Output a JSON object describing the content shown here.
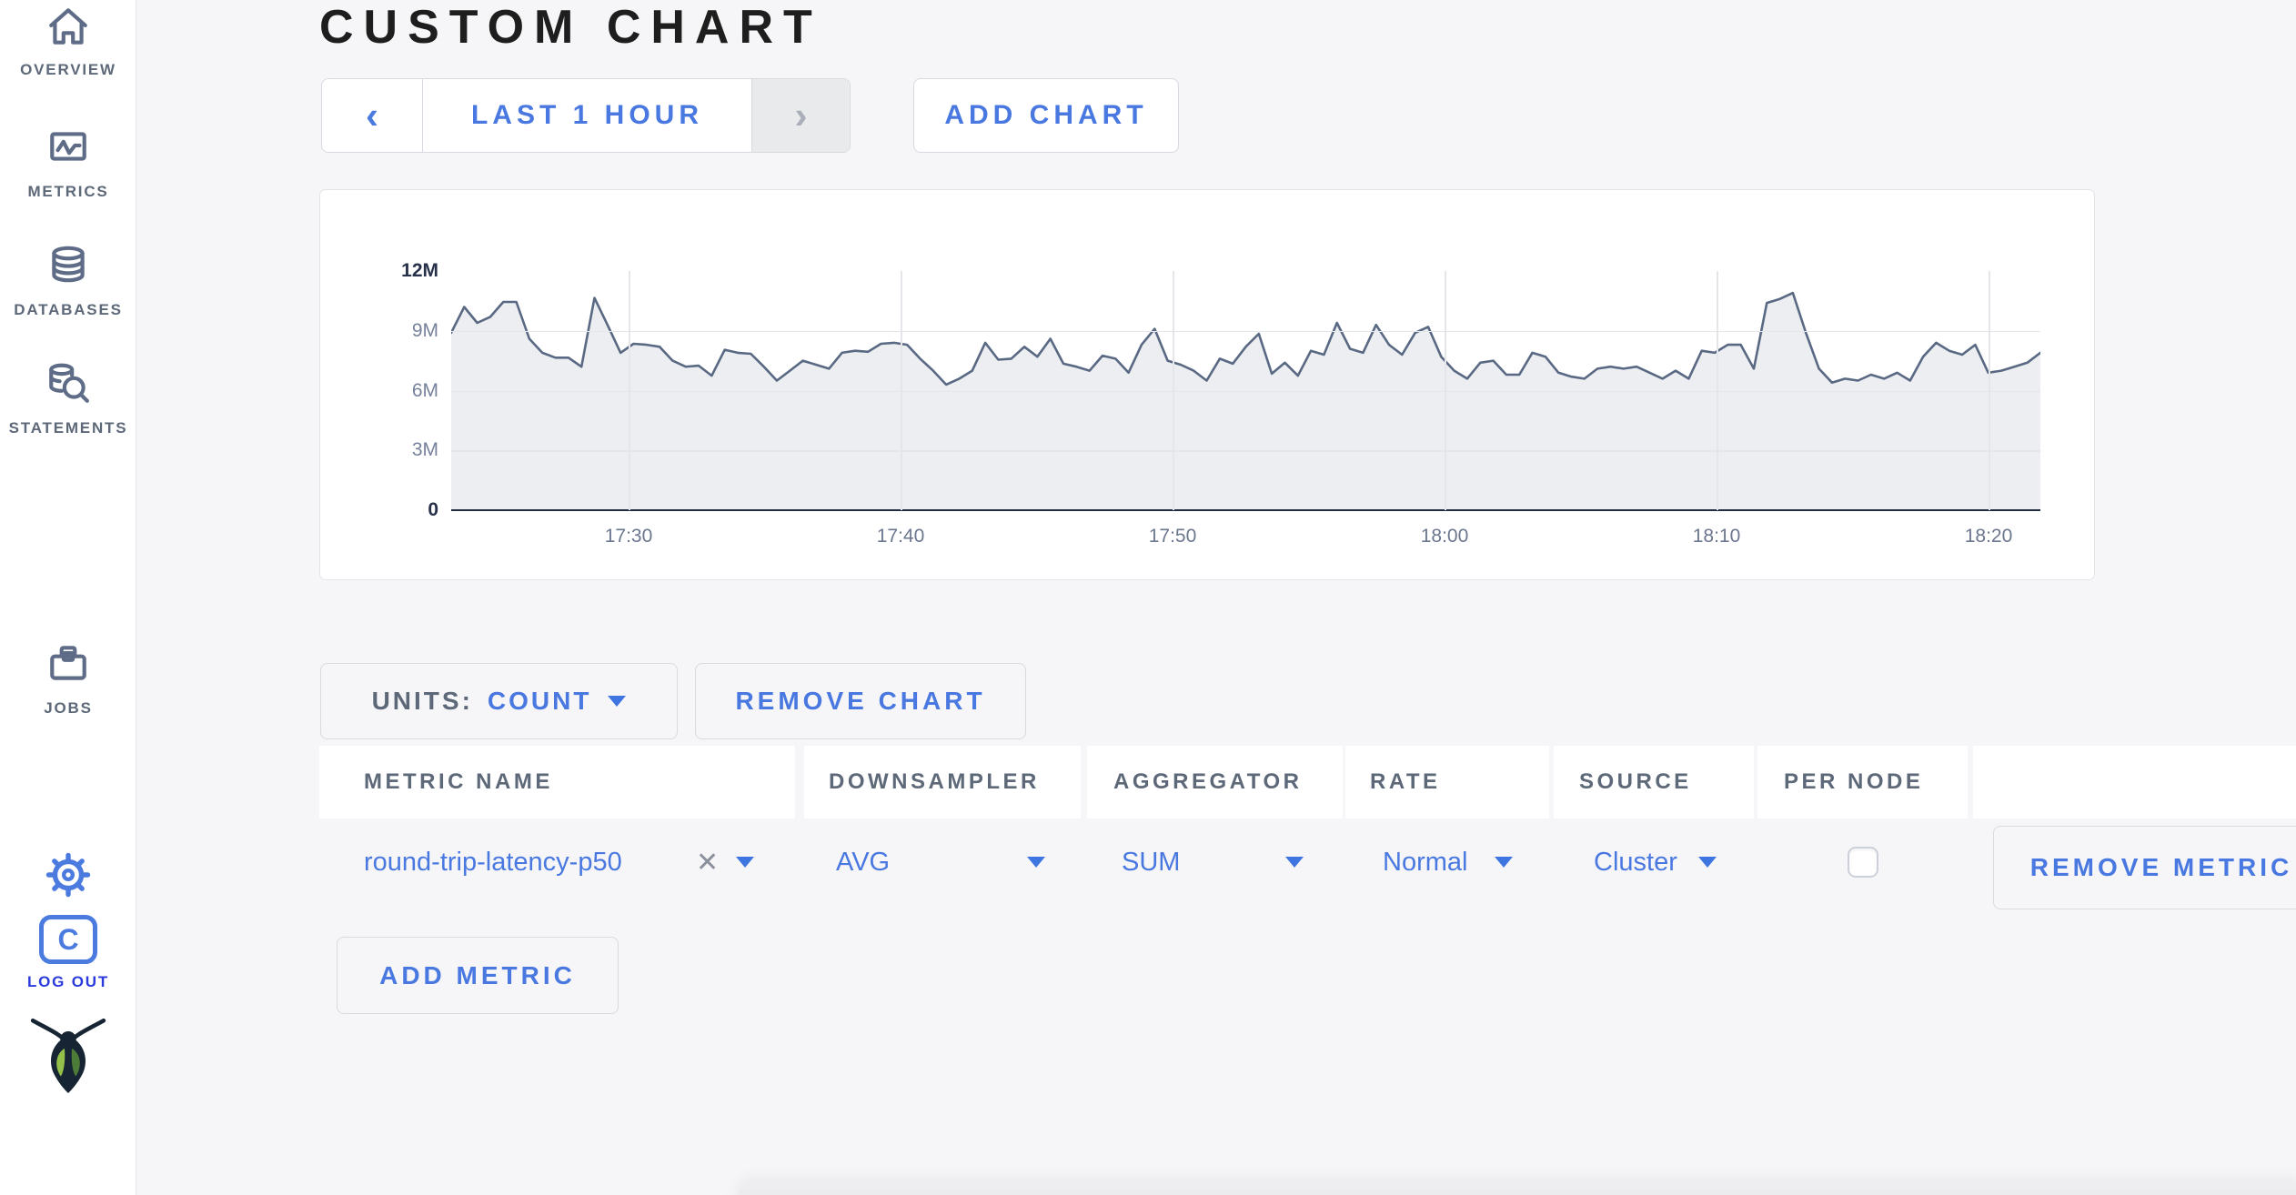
{
  "sidebar": {
    "items": [
      {
        "label": "OVERVIEW"
      },
      {
        "label": "METRICS"
      },
      {
        "label": "DATABASES"
      },
      {
        "label": "STATEMENTS"
      },
      {
        "label": "JOBS"
      }
    ],
    "logout_label": "LOG OUT",
    "logout_initial": "C"
  },
  "header": {
    "title": "CUSTOM CHART"
  },
  "controls": {
    "prev_icon": "‹",
    "time_range_label": "LAST 1 HOUR",
    "next_icon": "›",
    "add_chart_label": "ADD CHART"
  },
  "units_bar": {
    "units_label": "UNITS:",
    "units_value": "COUNT",
    "remove_chart_label": "REMOVE CHART"
  },
  "table": {
    "headers": [
      "METRIC NAME",
      "DOWNSAMPLER",
      "AGGREGATOR",
      "RATE",
      "SOURCE",
      "PER NODE"
    ],
    "rows": [
      {
        "metric_name": "round-trip-latency-p50",
        "clear_icon": "✕",
        "downsampler": "AVG",
        "aggregator": "SUM",
        "rate": "Normal",
        "source": "Cluster",
        "per_node_checked": false,
        "remove_label": "REMOVE METRIC"
      }
    ],
    "add_metric_label": "ADD METRIC"
  },
  "colors": {
    "accent_blue": "#4878e0",
    "logout_blue": "#2b3bdb",
    "line": "#5a6983",
    "fill": "rgba(90,105,131,0.115)",
    "slate_text": "#5d6879"
  },
  "chart_data": {
    "type": "area",
    "title": "",
    "unit": "COUNT",
    "x_start": "17:23",
    "x_end": "18:22",
    "x_ticks": [
      "17:30",
      "17:40",
      "17:50",
      "18:00",
      "18:10",
      "18:20"
    ],
    "y_ticks": [
      "0",
      "3M",
      "6M",
      "9M",
      "12M"
    ],
    "ylim": [
      0,
      12000000
    ],
    "grid": true,
    "legend": "none",
    "series": [
      {
        "name": "round-trip-latency-p50",
        "values_millions": [
          8.9,
          10.2,
          9.4,
          9.7,
          10.45,
          10.45,
          8.6,
          7.9,
          7.65,
          7.65,
          7.2,
          10.65,
          9.3,
          7.9,
          8.35,
          8.3,
          8.2,
          7.5,
          7.2,
          7.25,
          6.75,
          8.05,
          7.9,
          7.85,
          7.2,
          6.5,
          7.0,
          7.5,
          7.3,
          7.1,
          7.9,
          8.0,
          7.95,
          8.35,
          8.4,
          8.3,
          7.6,
          7.0,
          6.3,
          6.6,
          7.0,
          8.4,
          7.55,
          7.6,
          8.2,
          7.7,
          8.6,
          7.35,
          7.2,
          7.0,
          7.75,
          7.6,
          6.9,
          8.3,
          9.1,
          7.5,
          7.3,
          7.0,
          6.5,
          7.6,
          7.35,
          8.2,
          8.85,
          6.85,
          7.4,
          6.75,
          8.0,
          7.8,
          9.4,
          8.1,
          7.9,
          9.3,
          8.3,
          7.8,
          8.9,
          9.2,
          7.7,
          7.0,
          6.6,
          7.4,
          7.5,
          6.8,
          6.8,
          7.9,
          7.7,
          6.9,
          6.7,
          6.6,
          7.1,
          7.2,
          7.1,
          7.2,
          6.9,
          6.6,
          7.0,
          6.6,
          8.0,
          7.9,
          8.3,
          8.3,
          7.1,
          10.4,
          10.6,
          10.9,
          8.9,
          7.1,
          6.4,
          6.6,
          6.5,
          6.8,
          6.6,
          6.9,
          6.5,
          7.7,
          8.4,
          8.0,
          7.8,
          8.3,
          6.9,
          7.0,
          7.2,
          7.4,
          7.9
        ]
      }
    ]
  }
}
